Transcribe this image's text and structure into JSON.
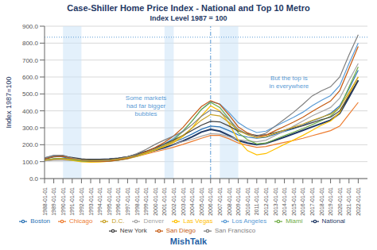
{
  "chart_data": {
    "type": "line",
    "title": "Case-Shiller Home Price Index - National and Top 10 Metro",
    "subtitle": "Index Level 1987 = 100",
    "y_label": "Index 1987=100",
    "watermark": "MishTalk",
    "title_color": "#1f3864",
    "y_label_color": "#1f3864",
    "watermark_color": "#1f5fa6",
    "x": [
      1988,
      1989,
      1990,
      1991,
      1992,
      1993,
      1994,
      1995,
      1996,
      1997,
      1998,
      1999,
      2000,
      2001,
      2002,
      2003,
      2004,
      2005,
      2006,
      2007,
      2008,
      2009,
      2010,
      2011,
      2012,
      2013,
      2014,
      2015,
      2016,
      2017,
      2018,
      2019,
      2020,
      2021,
      2022
    ],
    "xlim": [
      1988,
      2023
    ],
    "xticks": [
      {
        "value": 1988,
        "label": "1988-01-01"
      },
      {
        "value": 1989,
        "label": "1989-01-01"
      },
      {
        "value": 1990,
        "label": "1990-01-01"
      },
      {
        "value": 1991,
        "label": "1991-01-01"
      },
      {
        "value": 1992,
        "label": "1992-01-01"
      },
      {
        "value": 1993,
        "label": "1993-01-01"
      },
      {
        "value": 1994,
        "label": "1994-01-01"
      },
      {
        "value": 1995,
        "label": "1995-01-01"
      },
      {
        "value": 1996,
        "label": "1996-01-01"
      },
      {
        "value": 1997,
        "label": "1997-01-01"
      },
      {
        "value": 1998,
        "label": "1998-01-01"
      },
      {
        "value": 1999,
        "label": "1999-01-01"
      },
      {
        "value": 2000,
        "label": "2000-01-01"
      },
      {
        "value": 2001,
        "label": "2001-01-01"
      },
      {
        "value": 2002,
        "label": "2002-01-01"
      },
      {
        "value": 2003,
        "label": "2003-01-01"
      },
      {
        "value": 2004,
        "label": "2004-01-01"
      },
      {
        "value": 2005,
        "label": "2005-01-01"
      },
      {
        "value": 2006,
        "label": "2006-01-01"
      },
      {
        "value": 2007,
        "label": "2007-01-01"
      },
      {
        "value": 2008,
        "label": "2008-01-01"
      },
      {
        "value": 2009,
        "label": "2009-01-01"
      },
      {
        "value": 2010,
        "label": "2010-01-01"
      },
      {
        "value": 2011,
        "label": "2011-01-01"
      },
      {
        "value": 2012,
        "label": "2012-01-01"
      },
      {
        "value": 2013,
        "label": "2013-01-01"
      },
      {
        "value": 2014,
        "label": "2014-01-01"
      },
      {
        "value": 2015,
        "label": "2015-01-01"
      },
      {
        "value": 2016,
        "label": "2016-01-01"
      },
      {
        "value": 2017,
        "label": "2017-01-01"
      },
      {
        "value": 2018,
        "label": "2018-01-01"
      },
      {
        "value": 2019,
        "label": "2019-01-01"
      },
      {
        "value": 2020,
        "label": "2020-01-01"
      },
      {
        "value": 2021,
        "label": "2021-01-01"
      },
      {
        "value": 2022,
        "label": "2022-01-01"
      }
    ],
    "ylim": [
      0,
      900
    ],
    "yticks": [
      {
        "value": 0,
        "label": "0.0"
      },
      {
        "value": 100,
        "label": "100.0"
      },
      {
        "value": 200,
        "label": "200.0"
      },
      {
        "value": 300,
        "label": "300.0"
      },
      {
        "value": 400,
        "label": "400.0"
      },
      {
        "value": 500,
        "label": "500.0"
      },
      {
        "value": 600,
        "label": "600.0"
      },
      {
        "value": 700,
        "label": "700.0"
      },
      {
        "value": 800,
        "label": "800.0"
      },
      {
        "value": 900,
        "label": "900.0"
      }
    ],
    "grid": true,
    "legend": "bottom",
    "series": [
      {
        "name": "National",
        "color": "#1f3864",
        "values": [
          107,
          114,
          118,
          115,
          113,
          112,
          113,
          115,
          119,
          127,
          138,
          152,
          167,
          183,
          202,
          222,
          247,
          275,
          290,
          280,
          255,
          225,
          210,
          200,
          208,
          226,
          245,
          265,
          285,
          305,
          325,
          345,
          385,
          480,
          580
        ]
      },
      {
        "name": "Boston",
        "color": "#2e75b6",
        "values": [
          122,
          136,
          128,
          112,
          103,
          100,
          101,
          104,
          112,
          123,
          137,
          155,
          175,
          196,
          216,
          237,
          263,
          291,
          310,
          305,
          283,
          258,
          245,
          238,
          244,
          262,
          278,
          295,
          315,
          340,
          360,
          385,
          430,
          530,
          640
        ]
      },
      {
        "name": "Chicago",
        "color": "#ed7d31",
        "values": [
          108,
          113,
          113,
          108,
          104,
          103,
          105,
          108,
          113,
          120,
          131,
          144,
          158,
          171,
          186,
          202,
          220,
          238,
          255,
          255,
          235,
          210,
          196,
          185,
          189,
          202,
          214,
          225,
          238,
          253,
          268,
          283,
          310,
          380,
          450
        ]
      },
      {
        "name": "Denver",
        "color": "#a5a5a5",
        "values": [
          105,
          108,
          108,
          106,
          105,
          106,
          109,
          113,
          120,
          130,
          144,
          159,
          175,
          191,
          205,
          218,
          232,
          250,
          265,
          262,
          248,
          230,
          222,
          217,
          227,
          254,
          280,
          310,
          340,
          370,
          395,
          420,
          475,
          580,
          680
        ]
      },
      {
        "name": "Las Vegas",
        "color": "#ffc000",
        "values": [
          109,
          116,
          116,
          107,
          99,
          96,
          98,
          102,
          108,
          117,
          130,
          148,
          168,
          189,
          214,
          248,
          299,
          370,
          430,
          400,
          325,
          225,
          165,
          140,
          148,
          175,
          202,
          228,
          255,
          285,
          315,
          340,
          390,
          500,
          600
        ]
      },
      {
        "name": "Los Angeles",
        "color": "#5b9bd5",
        "values": [
          118,
          133,
          135,
          122,
          111,
          105,
          103,
          103,
          108,
          118,
          133,
          154,
          178,
          205,
          238,
          282,
          340,
          408,
          455,
          440,
          390,
          330,
          295,
          272,
          280,
          308,
          335,
          362,
          392,
          430,
          462,
          490,
          550,
          680,
          800
        ]
      },
      {
        "name": "Miami",
        "color": "#70ad47",
        "values": [
          110,
          118,
          119,
          111,
          104,
          101,
          101,
          104,
          110,
          120,
          134,
          151,
          171,
          196,
          230,
          278,
          340,
          408,
          450,
          420,
          352,
          270,
          230,
          205,
          210,
          232,
          254,
          274,
          295,
          318,
          342,
          368,
          420,
          540,
          660
        ]
      },
      {
        "name": "New York",
        "color": "#404040",
        "values": [
          115,
          128,
          132,
          125,
          117,
          112,
          112,
          114,
          120,
          130,
          144,
          162,
          182,
          205,
          228,
          255,
          285,
          315,
          338,
          335,
          310,
          280,
          265,
          255,
          258,
          272,
          285,
          298,
          312,
          330,
          348,
          362,
          400,
          490,
          580
        ]
      },
      {
        "name": "San Diego",
        "color": "#c55a11",
        "values": [
          116,
          130,
          132,
          119,
          108,
          103,
          101,
          103,
          109,
          119,
          135,
          158,
          184,
          214,
          252,
          302,
          365,
          425,
          460,
          438,
          375,
          305,
          270,
          248,
          256,
          283,
          308,
          334,
          362,
          396,
          428,
          458,
          520,
          650,
          780
        ]
      },
      {
        "name": "San Francisco",
        "color": "#7f7f7f",
        "values": [
          122,
          138,
          138,
          122,
          110,
          104,
          104,
          108,
          116,
          128,
          147,
          172,
          202,
          228,
          252,
          277,
          318,
          368,
          405,
          395,
          348,
          290,
          262,
          250,
          268,
          310,
          350,
          392,
          438,
          488,
          518,
          542,
          600,
          730,
          850
        ]
      },
      {
        "name": "D.C.",
        "color": "#c9a227",
        "values": [
          108,
          114,
          118,
          114,
          109,
          107,
          107,
          109,
          115,
          124,
          136,
          153,
          173,
          196,
          222,
          255,
          299,
          345,
          378,
          370,
          332,
          285,
          258,
          242,
          248,
          268,
          286,
          304,
          322,
          343,
          362,
          380,
          420,
          510,
          600
        ]
      }
    ],
    "shaded_ranges": [
      [
        1990,
        1992
      ],
      [
        2001,
        2002
      ],
      [
        2007,
        2009
      ]
    ],
    "shading_color": "#cce4f7",
    "reference_lines": [
      {
        "axis": "y",
        "value": 835,
        "color": "#5b9bd5",
        "line_style": "dotted"
      },
      {
        "axis": "x",
        "value": 2006,
        "color": "#5b9bd5",
        "line_style": "dashdot"
      }
    ],
    "annotations": [
      {
        "text": "Some markets\nhad far bigger\nbubbles",
        "x": 1999,
        "y": 430,
        "color": "#5b9bd5"
      },
      {
        "text": "But the top is\nin everywhere",
        "x": 2014.5,
        "y": 570,
        "color": "#5b9bd5"
      }
    ]
  }
}
